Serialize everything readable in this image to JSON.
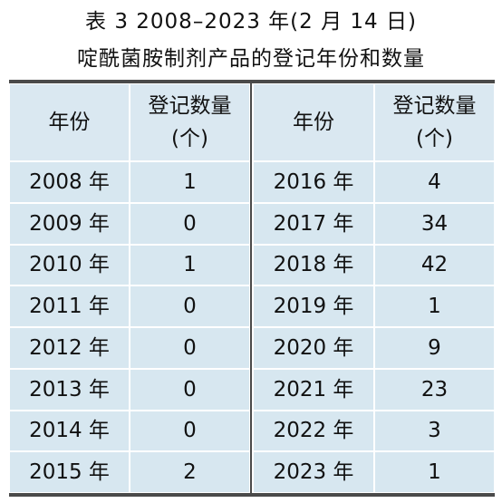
{
  "title": {
    "line1": "表 3 2008–2023 年(2 月 14 日)",
    "line2": "啶酰菌胺制剂产品的登记年份和数量"
  },
  "table": {
    "groups": [
      {
        "header": [
          "年份",
          "登记数量",
          "(个)"
        ],
        "rows": [
          [
            "2008 年",
            1
          ],
          [
            "2009 年",
            0
          ],
          [
            "2010 年",
            1
          ],
          [
            "2011 年",
            0
          ],
          [
            "2012 年",
            0
          ],
          [
            "2013 年",
            0
          ],
          [
            "2014 年",
            0
          ],
          [
            "2015 年",
            2
          ]
        ]
      },
      {
        "header": [
          "年份",
          "登记数量",
          "(个)"
        ],
        "rows": [
          [
            "2016 年",
            4
          ],
          [
            "2017 年",
            34
          ],
          [
            "2018 年",
            42
          ],
          [
            "2019 年",
            1
          ],
          [
            "2020 年",
            9
          ],
          [
            "2021 年",
            23
          ],
          [
            "2022 年",
            3
          ],
          [
            "2023 年",
            1
          ]
        ]
      }
    ]
  }
}
